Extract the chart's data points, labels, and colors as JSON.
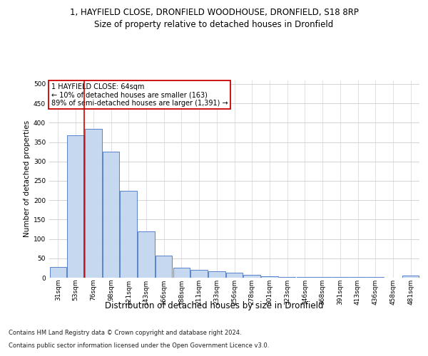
{
  "title1": "1, HAYFIELD CLOSE, DRONFIELD WOODHOUSE, DRONFIELD, S18 8RP",
  "title2": "Size of property relative to detached houses in Dronfield",
  "xlabel": "Distribution of detached houses by size in Dronfield",
  "ylabel": "Number of detached properties",
  "footer1": "Contains HM Land Registry data © Crown copyright and database right 2024.",
  "footer2": "Contains public sector information licensed under the Open Government Licence v3.0.",
  "bar_labels": [
    "31sqm",
    "53sqm",
    "76sqm",
    "98sqm",
    "121sqm",
    "143sqm",
    "166sqm",
    "188sqm",
    "211sqm",
    "233sqm",
    "256sqm",
    "278sqm",
    "301sqm",
    "323sqm",
    "346sqm",
    "368sqm",
    "391sqm",
    "413sqm",
    "436sqm",
    "458sqm",
    "481sqm"
  ],
  "bar_values": [
    27,
    368,
    385,
    325,
    225,
    120,
    57,
    26,
    20,
    16,
    13,
    7,
    4,
    2,
    2,
    1,
    1,
    1,
    1,
    0,
    5
  ],
  "bar_color": "#c5d8f0",
  "bar_edge_color": "#4472c4",
  "vline_color": "#cc0000",
  "annotation_title": "1 HAYFIELD CLOSE: 64sqm",
  "annotation_line1": "← 10% of detached houses are smaller (163)",
  "annotation_line2": "89% of semi-detached houses are larger (1,391) →",
  "annotation_box_color": "#ffffff",
  "annotation_box_edge": "#cc0000",
  "ylim": [
    0,
    510
  ],
  "yticks": [
    0,
    50,
    100,
    150,
    200,
    250,
    300,
    350,
    400,
    450,
    500
  ],
  "background_color": "#ffffff",
  "grid_color": "#cccccc",
  "title1_fontsize": 8.5,
  "title2_fontsize": 8.5,
  "xlabel_fontsize": 8.5,
  "ylabel_fontsize": 7.5,
  "tick_fontsize": 6.5,
  "footer_fontsize": 6.0,
  "ann_fontsize": 7.0
}
